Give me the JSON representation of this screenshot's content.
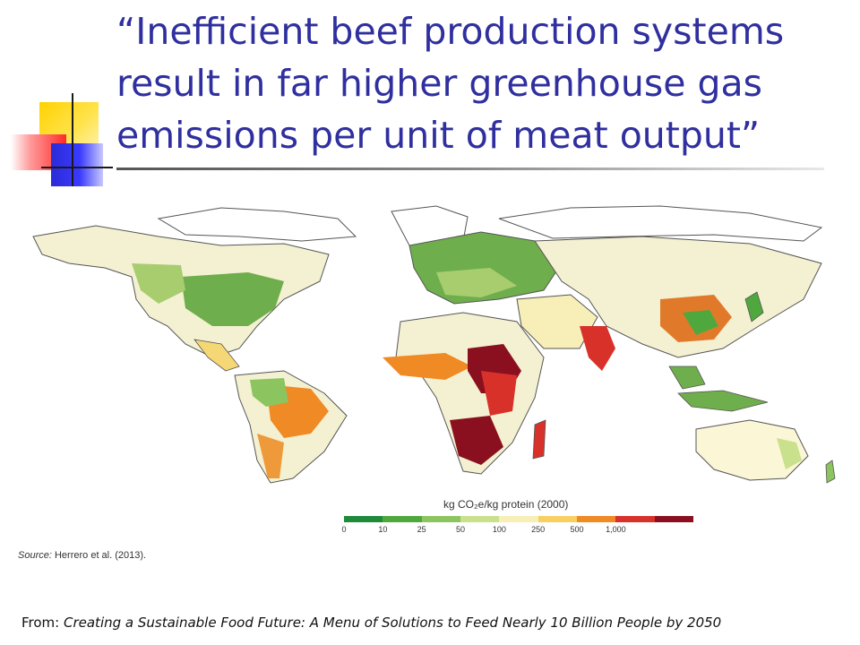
{
  "slide": {
    "title": "“Inefficient beef production systems result in far higher greenhouse gas emissions per unit of meat output”",
    "citation_prefix": "From: ",
    "citation_work": "Creating a Sustainable Food Future: A Menu of Solutions to Feed Nearly 10 Billion People by 2050"
  },
  "map": {
    "legend_title": "kg CO₂e/kg protein (2000)",
    "legend_ticks": [
      "0",
      "10",
      "25",
      "50",
      "100",
      "250",
      "500",
      "1,000"
    ],
    "legend_colors": [
      "#1e8a3a",
      "#4fa83d",
      "#8cc460",
      "#c9e08d",
      "#f7efb7",
      "#f7cf63",
      "#f08a24",
      "#d8312a",
      "#8a1020"
    ],
    "source_label": "Source:",
    "source_text": " Herrero et al. (2013)."
  }
}
